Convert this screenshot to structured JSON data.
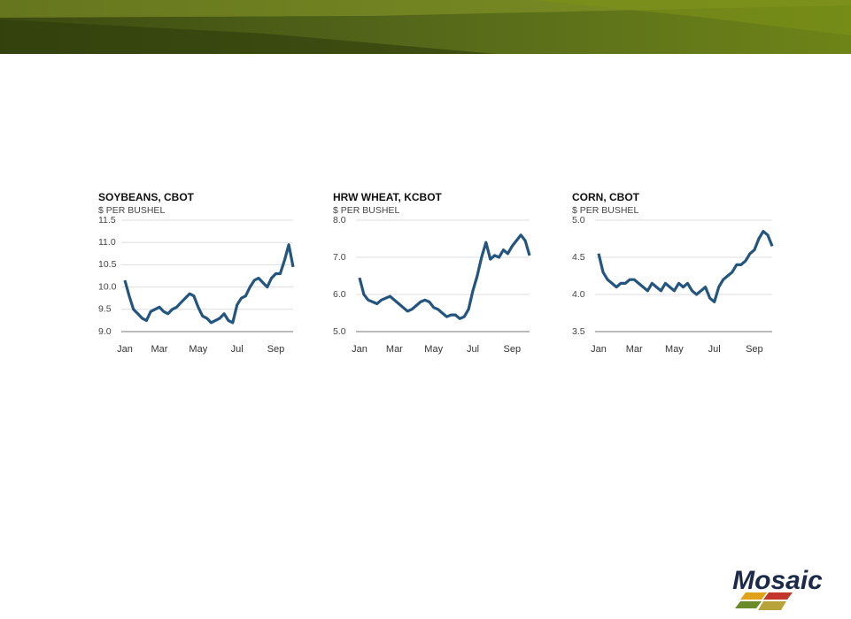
{
  "chart_data": [
    {
      "type": "line",
      "title": "SOYBEANS, CBOT",
      "subtitle": "$ PER BUSHEL",
      "categories": [
        "Jan",
        null,
        null,
        null,
        null,
        null,
        null,
        null,
        "Mar",
        null,
        null,
        null,
        null,
        null,
        null,
        null,
        null,
        "May",
        null,
        null,
        null,
        null,
        null,
        null,
        null,
        null,
        "Jul",
        null,
        null,
        null,
        null,
        null,
        null,
        null,
        null,
        "Sep",
        null,
        null,
        null,
        null
      ],
      "series": [
        {
          "name": "Soybeans",
          "color": "#23557f",
          "values": [
            10.15,
            9.8,
            9.5,
            9.4,
            9.3,
            9.25,
            9.45,
            9.5,
            9.55,
            9.45,
            9.4,
            9.5,
            9.55,
            9.65,
            9.75,
            9.85,
            9.8,
            9.55,
            9.35,
            9.3,
            9.2,
            9.25,
            9.3,
            9.4,
            9.25,
            9.2,
            9.6,
            9.75,
            9.8,
            10.0,
            10.15,
            10.2,
            10.1,
            10.0,
            10.2,
            10.3,
            10.3,
            10.6,
            10.95,
            10.45
          ]
        }
      ],
      "ylim": [
        9,
        11.5
      ],
      "yticks": [
        {
          "value": 9,
          "label": "9.0"
        },
        9.5,
        {
          "value": 10,
          "label": "10.0"
        },
        10.5,
        {
          "value": 11,
          "label": "11.0"
        },
        11.5
      ],
      "grid": true
    },
    {
      "type": "line",
      "title": "HRW WHEAT, KCBOT",
      "subtitle": "$ PER BUSHEL",
      "categories": [
        "Jan",
        null,
        null,
        null,
        null,
        null,
        null,
        null,
        "Mar",
        null,
        null,
        null,
        null,
        null,
        null,
        null,
        null,
        "May",
        null,
        null,
        null,
        null,
        null,
        null,
        null,
        null,
        "Jul",
        null,
        null,
        null,
        null,
        null,
        null,
        null,
        null,
        "Sep",
        null,
        null,
        null,
        null
      ],
      "series": [
        {
          "name": "HRW Wheat",
          "color": "#23557f",
          "values": [
            6.45,
            6.0,
            5.85,
            5.8,
            5.75,
            5.85,
            5.9,
            5.95,
            5.85,
            5.75,
            5.65,
            5.55,
            5.6,
            5.7,
            5.8,
            5.85,
            5.8,
            5.65,
            5.6,
            5.5,
            5.4,
            5.45,
            5.45,
            5.35,
            5.4,
            5.6,
            6.1,
            6.5,
            7.0,
            7.4,
            6.95,
            7.05,
            7.0,
            7.2,
            7.1,
            7.3,
            7.45,
            7.6,
            7.45,
            7.05
          ]
        }
      ],
      "ylim": [
        5,
        8
      ],
      "yticks": [
        {
          "value": 5,
          "label": "5.0"
        },
        {
          "value": 6,
          "label": "6.0"
        },
        {
          "value": 7,
          "label": "7.0"
        },
        {
          "value": 8,
          "label": "8.0"
        }
      ],
      "grid": true
    },
    {
      "type": "line",
      "title": "CORN, CBOT",
      "subtitle": "$ PER BUSHEL",
      "categories": [
        "Jan",
        null,
        null,
        null,
        null,
        null,
        null,
        null,
        "Mar",
        null,
        null,
        null,
        null,
        null,
        null,
        null,
        null,
        "May",
        null,
        null,
        null,
        null,
        null,
        null,
        null,
        null,
        "Jul",
        null,
        null,
        null,
        null,
        null,
        null,
        null,
        null,
        "Sep",
        null,
        null,
        null,
        null
      ],
      "series": [
        {
          "name": "Corn",
          "color": "#23557f",
          "values": [
            4.55,
            4.3,
            4.2,
            4.15,
            4.1,
            4.15,
            4.15,
            4.2,
            4.2,
            4.15,
            4.1,
            4.05,
            4.15,
            4.1,
            4.05,
            4.15,
            4.1,
            4.05,
            4.15,
            4.1,
            4.15,
            4.05,
            4.0,
            4.05,
            4.1,
            3.95,
            3.9,
            4.1,
            4.2,
            4.25,
            4.3,
            4.4,
            4.4,
            4.45,
            4.55,
            4.6,
            4.75,
            4.85,
            4.8,
            4.65
          ]
        }
      ],
      "ylim": [
        3.5,
        5
      ],
      "yticks": [
        3.5,
        {
          "value": 4,
          "label": "4.0"
        },
        4.5,
        {
          "value": 5,
          "label": "5.0"
        }
      ],
      "grid": true
    }
  ],
  "logo": "Mosaic"
}
